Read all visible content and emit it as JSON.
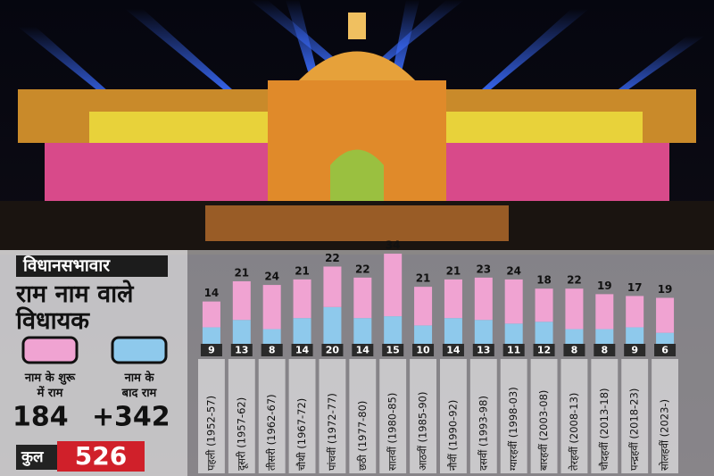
{
  "chart_data": {
    "type": "stacked-bar",
    "title": "विधानसभावार",
    "subtitle": "राम नाम वाले विधायक",
    "categories": [
      "पहली (1952-57)",
      "दूसरी (1957-62)",
      "तीसरी (1962-67)",
      "चौथी (1967-72)",
      "पांचवीं (1972-77)",
      "छठी (1977-80)",
      "सातवीं (1980-85)",
      "आठवीं (1985-90)",
      "नौवीं (1990-92)",
      "दसवीं (1993-98)",
      "ग्यारहवीं (1998-03)",
      "बारहवीं (2003-08)",
      "तेरहवीं (2008-13)",
      "चौदहवीं (2013-18)",
      "पन्द्रहवीं (2018-23)",
      "सोलहवीं (2023-)"
    ],
    "series": [
      {
        "name": "नाम के बाद राम",
        "color": "#8ec9ec",
        "values": [
          9,
          13,
          8,
          14,
          20,
          14,
          15,
          10,
          14,
          13,
          11,
          12,
          8,
          8,
          9,
          6
        ]
      },
      {
        "name": "नाम के शुरू में राम",
        "color": "#f0a3d2",
        "values": [
          14,
          21,
          24,
          21,
          22,
          22,
          34,
          21,
          21,
          23,
          24,
          18,
          22,
          19,
          17,
          19
        ]
      }
    ],
    "legend_totals": [
      "184",
      "342"
    ],
    "plus": "+",
    "total_label": "कुल",
    "total_value": "526",
    "ylim": [
      0,
      50
    ]
  }
}
